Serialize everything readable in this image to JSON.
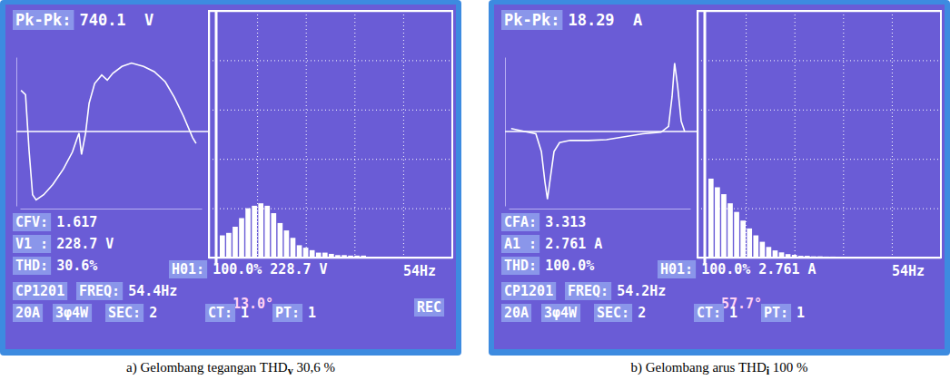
{
  "chart_data": [
    {
      "type": "line",
      "x": [
        2,
        11,
        18,
        25,
        32,
        47,
        65,
        86,
        104,
        112,
        117,
        122,
        130,
        137,
        148,
        162,
        173,
        184,
        202,
        221,
        245,
        266,
        288,
        306,
        324,
        342,
        349
      ],
      "values": [
        221,
        198,
        -101,
        -340,
        -368,
        -340,
        -285,
        -202,
        -110,
        -46,
        -9,
        -124,
        -9,
        152,
        258,
        304,
        276,
        313,
        350,
        368,
        350,
        322,
        267,
        184,
        83,
        -32,
        -64
      ],
      "xlim": [
        0,
        360
      ],
      "ylim": [
        -400,
        400
      ],
      "yticks": [
        0
      ],
      "color": "#ffffff",
      "grid": true,
      "tick_labels": false
    },
    {
      "type": "bar",
      "categories": [
        null,
        null,
        null,
        null,
        null,
        null,
        null,
        null,
        null,
        null,
        null,
        null,
        null,
        null,
        null,
        null,
        null,
        null,
        null,
        null,
        null,
        null,
        null
      ],
      "values": [
        9,
        10,
        12.5,
        16,
        20,
        21,
        22,
        21,
        18,
        14,
        11,
        8,
        5,
        4,
        3,
        2,
        2,
        1.5,
        1,
        1,
        0.8,
        0.8,
        0.8
      ],
      "ylim": [
        0,
        100
      ],
      "yticks": [
        0,
        20,
        40,
        60,
        80,
        100
      ],
      "color": "#ffffff",
      "grid": true,
      "tick_labels": false
    },
    {
      "type": "line",
      "x": [
        5,
        32,
        54,
        65,
        72,
        77,
        83,
        90,
        101,
        122,
        158,
        194,
        230,
        266,
        302,
        317,
        324,
        329,
        335,
        342,
        349
      ],
      "values": [
        0.4,
        0,
        -0.3,
        -2.7,
        -6.8,
        -9.1,
        -6.1,
        -2.7,
        -1.5,
        -1.2,
        -1.2,
        -1.1,
        -0.7,
        -0.3,
        -0.1,
        0.7,
        4.7,
        9.2,
        6.1,
        1.4,
        0
      ],
      "xlim": [
        0,
        360
      ],
      "ylim": [
        -10,
        10
      ],
      "yticks": [
        0
      ],
      "color": "#ffffff",
      "grid": true,
      "tick_labels": false
    },
    {
      "type": "bar",
      "categories": [
        null,
        null,
        null,
        null,
        null,
        null,
        null,
        null,
        null,
        null,
        null,
        null,
        null,
        null,
        null,
        null,
        null,
        null,
        null,
        null,
        null,
        null
      ],
      "values": [
        32,
        28.5,
        25.7,
        22,
        18.5,
        15,
        11.8,
        9,
        6.4,
        4.3,
        2.9,
        2.1,
        1.4,
        1.1,
        0.7,
        0.7,
        0.5,
        0.5,
        0.4,
        0.4,
        0.3,
        0.3
      ],
      "ylim": [
        0,
        100
      ],
      "yticks": [
        0,
        20,
        40,
        60,
        80,
        100
      ],
      "color": "#ffffff",
      "grid": true,
      "tick_labels": false
    }
  ],
  "screens": [
    {
      "caption": {
        "text": "a) Gelombang tegangan THD",
        "sub": "v",
        "tail": " 30,6 %"
      },
      "fields": [
        {
          "label": "Pk-Pk:",
          "value": "740.1  V"
        },
        {
          "label": "CFV:",
          "value": "1.617"
        },
        {
          "label": "V1 :",
          "value": "228.7 V"
        },
        {
          "label": "THD:",
          "value": "30.6%"
        },
        {
          "label": "H01:",
          "value": "100.0% 228.7 V"
        },
        {
          "value": "54Hz"
        },
        {
          "label": "CP1201"
        },
        {
          "label": "FREQ:",
          "value": "54.4Hz"
        },
        {
          "value": "13.0°"
        },
        {
          "label": "20A"
        },
        {
          "label": "3φ4W"
        },
        {
          "label": "SEC:",
          "value": "2"
        },
        {
          "label": "CT:",
          "value": "1"
        },
        {
          "label": "PT:",
          "value": "1"
        },
        {
          "label": "REC"
        }
      ]
    },
    {
      "caption": {
        "text": "b) Gelombang arus THD",
        "sub": "i",
        "tail": " 100 %"
      },
      "fields": [
        {
          "label": "Pk-Pk:",
          "value": "18.29  A"
        },
        {
          "label": "CFA:",
          "value": "3.313"
        },
        {
          "label": "A1 :",
          "value": "2.761 A"
        },
        {
          "label": "THD:",
          "value": "100.0%"
        },
        {
          "label": "H01:",
          "value": "100.0% 2.761 A"
        },
        {
          "value": "54Hz"
        },
        {
          "label": "CP1201"
        },
        {
          "label": "FREQ:",
          "value": "54.2Hz"
        },
        {
          "value": "57.7°"
        },
        {
          "label": "20A"
        },
        {
          "label": "3φ4W"
        },
        {
          "label": "SEC:",
          "value": "2"
        },
        {
          "label": "CT:",
          "value": "1"
        },
        {
          "label": "PT:",
          "value": "1"
        }
      ]
    }
  ]
}
